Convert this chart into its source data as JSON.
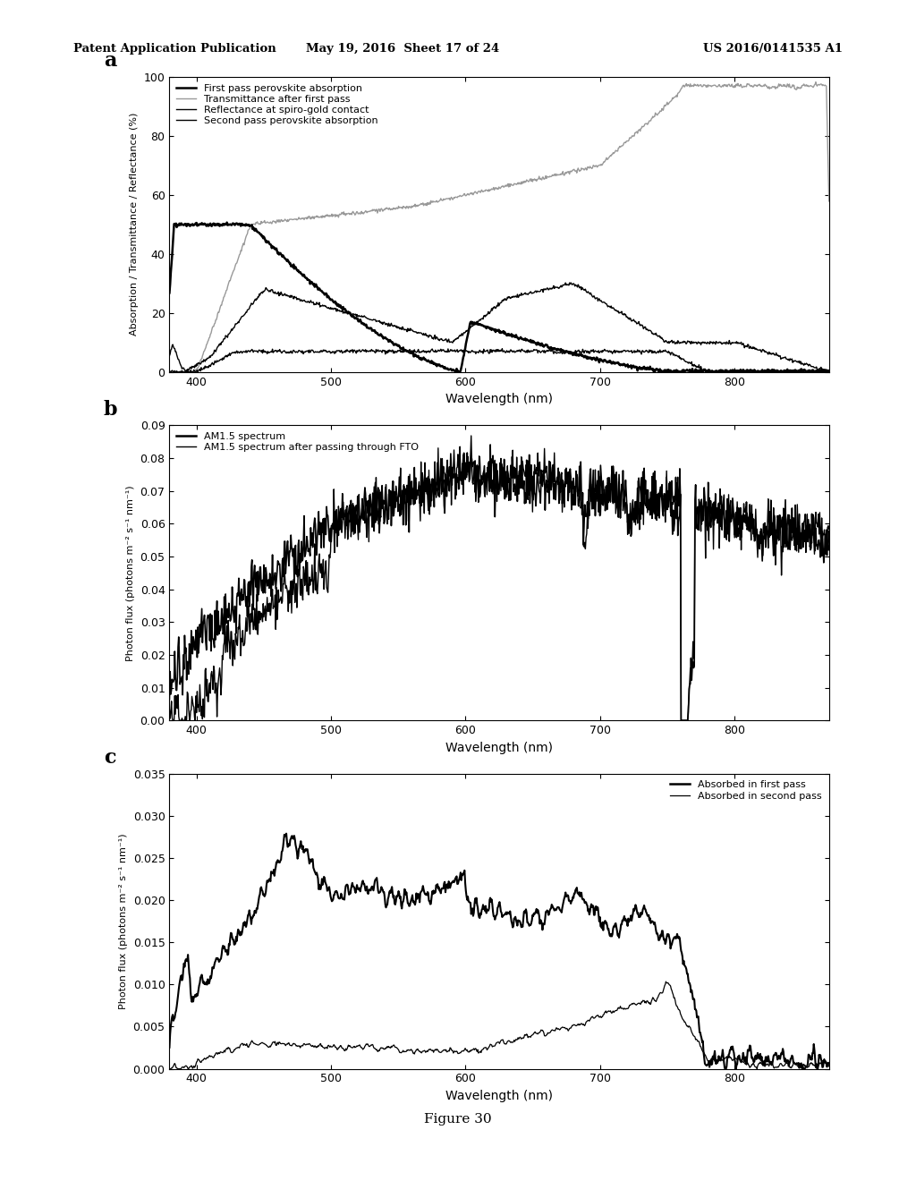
{
  "title_header_left": "Patent Application Publication",
  "title_header_mid": "May 19, 2016  Sheet 17 of 24",
  "title_header_right": "US 2016/0141535 A1",
  "figure_label": "Figure 30",
  "panel_a": {
    "label": "a",
    "xlabel": "Wavelength (nm)",
    "ylabel": "Absorption / Transmittance / Reflectance (%)",
    "xlim": [
      380,
      870
    ],
    "ylim": [
      0,
      100
    ],
    "yticks": [
      0,
      20,
      40,
      60,
      80,
      100
    ],
    "xticks": [
      400,
      500,
      600,
      700,
      800
    ],
    "legend": [
      "First pass perovskite absorption",
      "Transmittance after first pass",
      "Reflectance at spiro-gold contact",
      "Second pass perovskite absorption"
    ]
  },
  "panel_b": {
    "label": "b",
    "xlabel": "Wavelength (nm)",
    "ylabel": "Photon flux (photons m⁻² s⁻¹ nm⁻¹)",
    "xlim": [
      380,
      870
    ],
    "ylim": [
      0.0,
      0.09
    ],
    "yticks": [
      0.0,
      0.01,
      0.02,
      0.03,
      0.04,
      0.05,
      0.06,
      0.07,
      0.08,
      0.09
    ],
    "xticks": [
      400,
      500,
      600,
      700,
      800
    ],
    "legend": [
      "AM1.5 spectrum",
      "AM1.5 spectrum after passing through FTO"
    ]
  },
  "panel_c": {
    "label": "c",
    "xlabel": "Wavelength (nm)",
    "ylabel": "Photon flux (photons m⁻² s⁻¹ nm⁻¹)",
    "xlim": [
      380,
      870
    ],
    "ylim": [
      0.0,
      0.035
    ],
    "yticks": [
      0.0,
      0.005,
      0.01,
      0.015,
      0.02,
      0.025,
      0.03,
      0.035
    ],
    "xticks": [
      400,
      500,
      600,
      700,
      800
    ],
    "legend": [
      "Absorbed in first pass",
      "Absorbed in second pass"
    ]
  },
  "bg_color": "#ffffff"
}
